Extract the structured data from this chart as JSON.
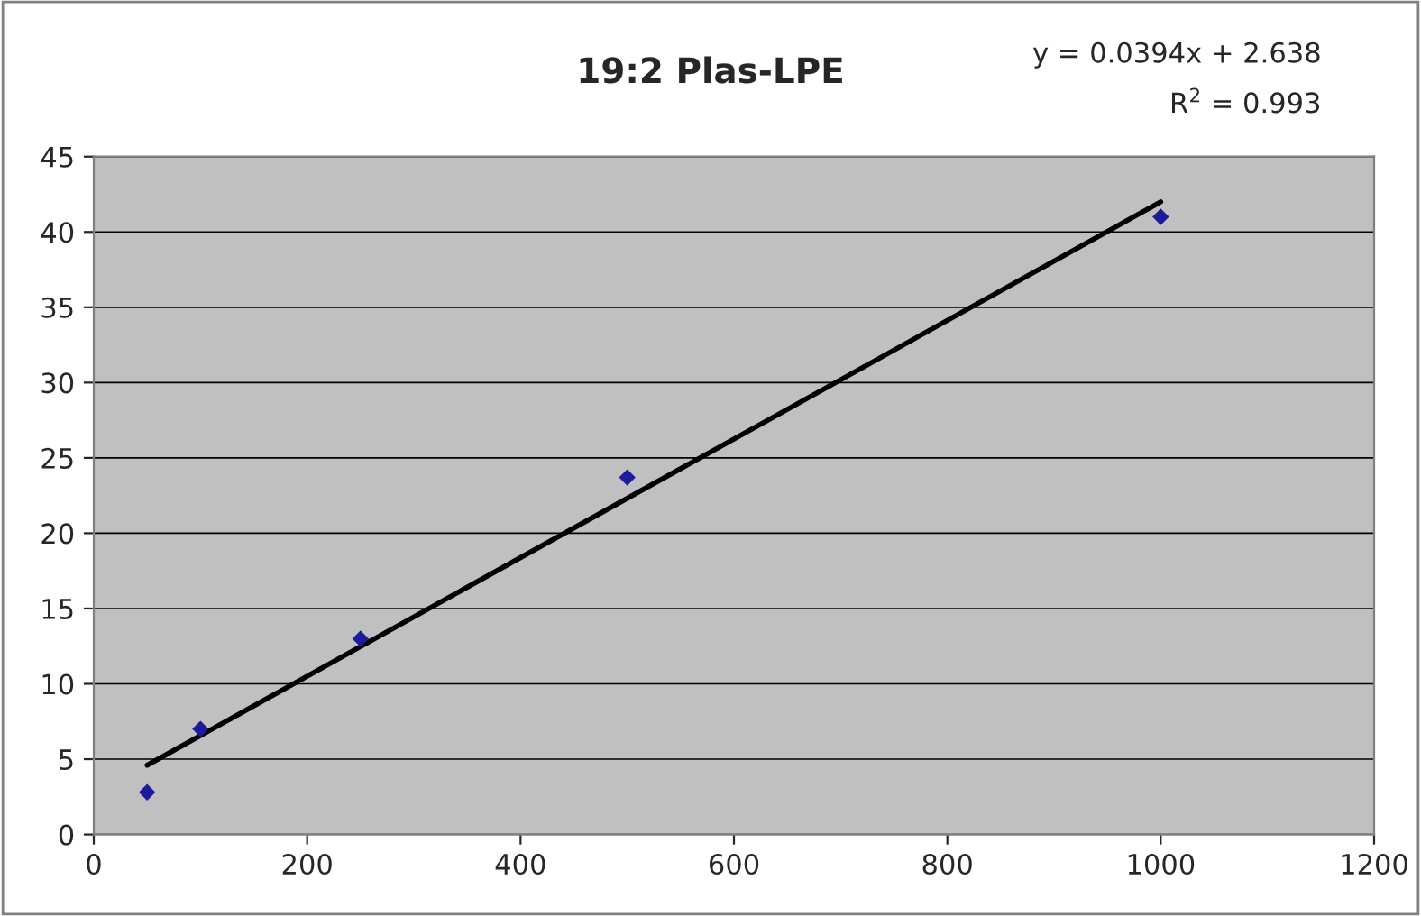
{
  "chart_data": {
    "type": "scatter",
    "title": "19:2 Plas-LPE",
    "annotations": [
      "y = 0.0394x + 2.638",
      "R$^{2}$ = 0.993"
    ],
    "series": [
      {
        "color": "#1c1c9a",
        "marker": "diamond",
        "x": [
          50,
          100,
          250,
          500,
          1000
        ],
        "values": [
          2.8,
          7.0,
          13.0,
          23.7,
          41.0
        ]
      },
      {
        "type": "line",
        "color": "#000000",
        "marker": "none",
        "line_style": "solid",
        "x": [
          50,
          1000
        ],
        "values": [
          4.6,
          42.0
        ]
      }
    ],
    "xlim": [
      0,
      1200
    ],
    "xticks": [
      0,
      200,
      400,
      600,
      800,
      1000,
      1200
    ],
    "ylim": [
      0,
      45
    ],
    "yticks": [
      0,
      5,
      10,
      15,
      20,
      25,
      30,
      35,
      40,
      45
    ],
    "grid": "y",
    "legend": false
  }
}
